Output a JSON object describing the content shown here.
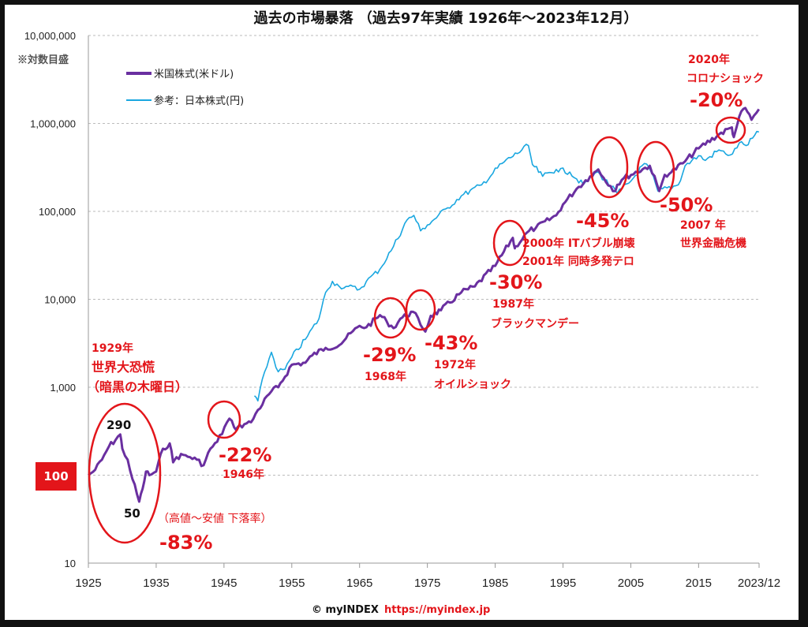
{
  "chart_data": {
    "type": "line",
    "title": "過去の市場暴落 （過去97年実績 1926年～2023年12月）",
    "y_scale": "log",
    "y_note": "※対数目盛",
    "ylim": [
      10,
      10000000
    ],
    "y_ticks": [
      "10,000,000",
      "1,000,000",
      "100,000",
      "10,000",
      "1,000",
      "100",
      "10"
    ],
    "y_tick_values": [
      10000000,
      1000000,
      100000,
      10000,
      1000,
      100,
      10
    ],
    "xlim": [
      1925,
      2023.92
    ],
    "x_ticks": [
      "1925",
      "1935",
      "1945",
      "1955",
      "1965",
      "1975",
      "1985",
      "1995",
      "2005",
      "2015",
      "2023/12"
    ],
    "x_tick_values": [
      1925,
      1935,
      1945,
      1955,
      1965,
      1975,
      1985,
      1995,
      2005,
      2015,
      2023.92
    ],
    "grid": "horizontal dashed",
    "legend_position": "top-left",
    "base_label": "100",
    "series": [
      {
        "name": "米国株式(米ドル)",
        "color": "#6a2fa0",
        "x": [
          1925,
          1926,
          1927,
          1928,
          1929.7,
          1930,
          1930.8,
          1931.5,
          1932.5,
          1933,
          1933.5,
          1934,
          1935,
          1936,
          1937,
          1937.5,
          1938,
          1939,
          1940,
          1941,
          1942,
          1943,
          1944,
          1945.8,
          1946.5,
          1947,
          1948,
          1949,
          1950,
          1952,
          1953,
          1955,
          1957,
          1958,
          1960,
          1962,
          1963,
          1965,
          1966,
          1968,
          1969,
          1970,
          1971,
          1972.9,
          1974.7,
          1975.5,
          1977,
          1980,
          1982,
          1985,
          1987.6,
          1987.9,
          1988,
          1990,
          1991,
          1994,
          1995,
          1997,
          1999,
          2000.2,
          2001,
          2002.7,
          2003,
          2004,
          2007.8,
          2009.2,
          2010,
          2011,
          2013,
          2015,
          2018,
          2019.9,
          2020.2,
          2021,
          2021.9,
          2022.8,
          2023.9
        ],
        "values": [
          100,
          115,
          150,
          210,
          290,
          200,
          150,
          90,
          50,
          70,
          110,
          100,
          110,
          200,
          230,
          140,
          160,
          170,
          160,
          150,
          130,
          200,
          240,
          440,
          350,
          350,
          380,
          400,
          550,
          900,
          1000,
          1800,
          1900,
          2300,
          2800,
          3000,
          3600,
          5000,
          4800,
          6600,
          5600,
          4700,
          6000,
          7200,
          4300,
          6500,
          7500,
          12000,
          14000,
          24000,
          50000,
          38000,
          40000,
          60000,
          65000,
          90000,
          120000,
          180000,
          250000,
          300000,
          240000,
          170000,
          200000,
          240000,
          330000,
          170000,
          260000,
          280000,
          370000,
          520000,
          750000,
          900000,
          700000,
          1200000,
          1500000,
          1100000,
          1450000
        ]
      },
      {
        "name": "参考：日本株式(円)",
        "color": "#1aa7e0",
        "x": [
          1949.5,
          1950,
          1951,
          1952,
          1953,
          1954,
          1955,
          1957,
          1959,
          1960,
          1961,
          1962,
          1963,
          1965,
          1966,
          1968,
          1970,
          1972,
          1973,
          1974,
          1975,
          1978,
          1980,
          1983,
          1986,
          1989.9,
          1990.5,
          1992,
          1994,
          1996,
          1998,
          2000,
          2000.5,
          2003,
          2005,
          2007,
          2008,
          2009,
          2012,
          2013,
          2015,
          2016,
          2018,
          2019,
          2020,
          2021,
          2022,
          2023.9
        ],
        "values": [
          800,
          700,
          1500,
          2500,
          1500,
          1600,
          2200,
          3500,
          6000,
          12000,
          16000,
          14000,
          14000,
          13000,
          16000,
          22000,
          40000,
          80000,
          90000,
          60000,
          70000,
          110000,
          150000,
          200000,
          350000,
          560000,
          340000,
          250000,
          300000,
          280000,
          200000,
          280000,
          260000,
          160000,
          220000,
          350000,
          280000,
          170000,
          200000,
          330000,
          430000,
          380000,
          500000,
          450000,
          450000,
          600000,
          560000,
          800000
        ]
      }
    ],
    "point_labels": {
      "peak_1929": "290",
      "trough_1932": "50"
    },
    "annotations": {
      "covid": {
        "year": "2020年",
        "name": "コロナショック",
        "drop": "-20%"
      },
      "depression": {
        "year": "1929年",
        "name": "世界大恐慌",
        "sub": "（暗黒の木曜日）",
        "note": "（高値～安値 下落率）",
        "drop": "-83%"
      },
      "y1946": {
        "drop": "-22%",
        "year": "1946年"
      },
      "y1968": {
        "drop": "-29%",
        "year": "1968年"
      },
      "oil": {
        "drop": "-43%",
        "year": "1972年",
        "name": "オイルショック"
      },
      "black_monday": {
        "drop": "-30%",
        "year": "1987年",
        "name": "ブラックマンデー"
      },
      "dotcom": {
        "drop": "-45%",
        "line1": "2000年 ITバブル崩壊",
        "line2": "2001年 同時多発テロ"
      },
      "gfc": {
        "drop": "-50%",
        "year": "2007 年",
        "name": "世界金融危機"
      }
    },
    "accent_color": "#e3151a"
  },
  "footer": {
    "copyright": "© myINDEX",
    "url": "https://myindex.jp"
  }
}
